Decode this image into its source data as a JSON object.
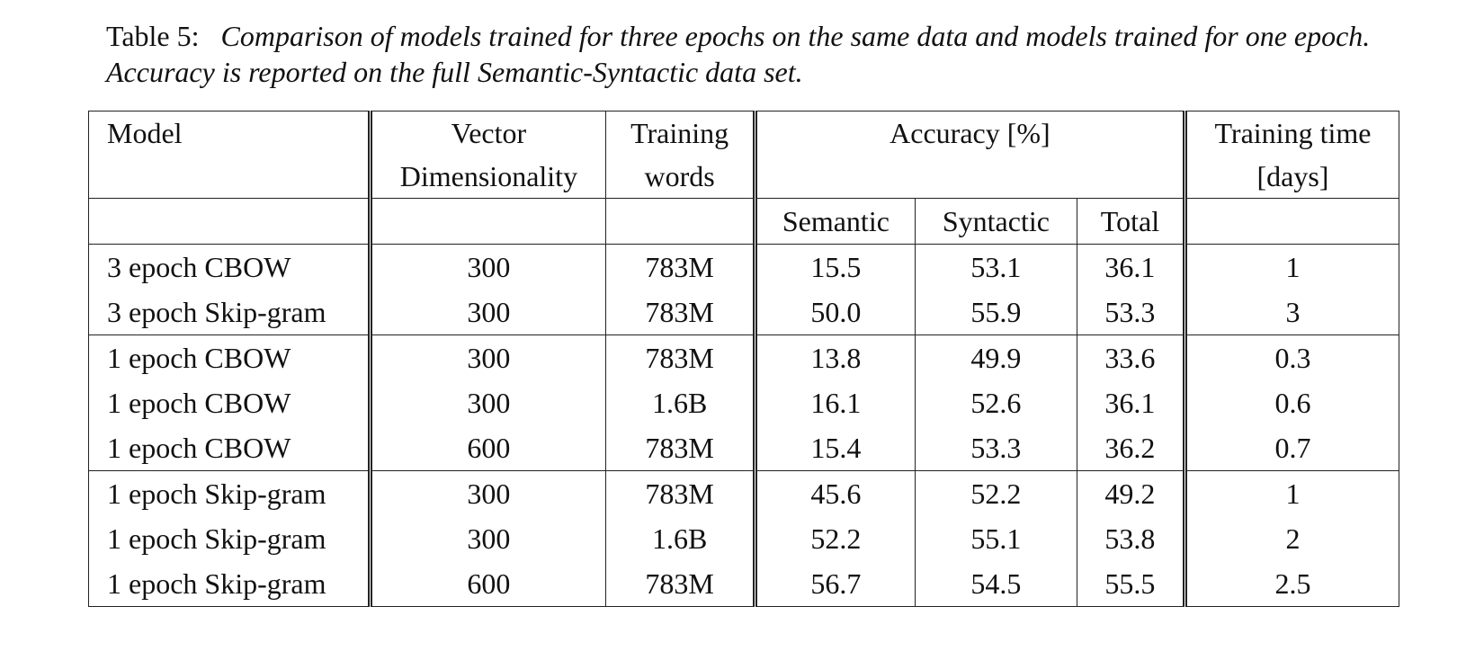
{
  "caption": {
    "label": "Table 5:",
    "text": "Comparison of models trained for three epochs on the same data and models trained for one epoch. Accuracy is reported on the full Semantic-Syntactic data set."
  },
  "table": {
    "headers": {
      "model": "Model",
      "vector_line1": "Vector",
      "vector_line2": "Dimensionality",
      "words_line1": "Training",
      "words_line2": "words",
      "accuracy": "Accuracy [%]",
      "time_line1": "Training time",
      "time_line2": "[days]",
      "semantic": "Semantic",
      "syntactic": "Syntactic",
      "total": "Total"
    },
    "groups": [
      [
        {
          "model": "3 epoch CBOW",
          "dim": "300",
          "words": "783M",
          "semantic": "15.5",
          "syntactic": "53.1",
          "total": "36.1",
          "time": "1"
        },
        {
          "model": "3 epoch Skip-gram",
          "dim": "300",
          "words": "783M",
          "semantic": "50.0",
          "syntactic": "55.9",
          "total": "53.3",
          "time": "3"
        }
      ],
      [
        {
          "model": "1 epoch CBOW",
          "dim": "300",
          "words": "783M",
          "semantic": "13.8",
          "syntactic": "49.9",
          "total": "33.6",
          "time": "0.3"
        },
        {
          "model": "1 epoch CBOW",
          "dim": "300",
          "words": "1.6B",
          "semantic": "16.1",
          "syntactic": "52.6",
          "total": "36.1",
          "time": "0.6"
        },
        {
          "model": "1 epoch CBOW",
          "dim": "600",
          "words": "783M",
          "semantic": "15.4",
          "syntactic": "53.3",
          "total": "36.2",
          "time": "0.7"
        }
      ],
      [
        {
          "model": "1 epoch Skip-gram",
          "dim": "300",
          "words": "783M",
          "semantic": "45.6",
          "syntactic": "52.2",
          "total": "49.2",
          "time": "1"
        },
        {
          "model": "1 epoch Skip-gram",
          "dim": "300",
          "words": "1.6B",
          "semantic": "52.2",
          "syntactic": "55.1",
          "total": "53.8",
          "time": "2"
        },
        {
          "model": "1 epoch Skip-gram",
          "dim": "600",
          "words": "783M",
          "semantic": "56.7",
          "syntactic": "54.5",
          "total": "55.5",
          "time": "2.5"
        }
      ]
    ]
  }
}
